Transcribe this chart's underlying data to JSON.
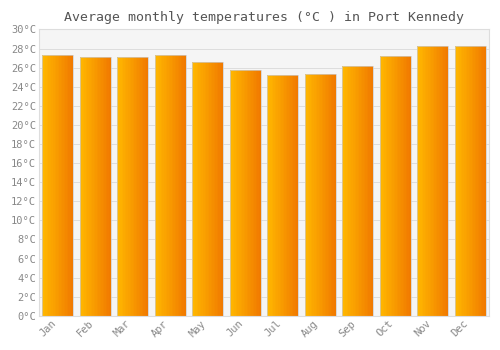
{
  "title": "Average monthly temperatures (°C ) in Port Kennedy",
  "months": [
    "Jan",
    "Feb",
    "Mar",
    "Apr",
    "May",
    "Jun",
    "Jul",
    "Aug",
    "Sep",
    "Oct",
    "Nov",
    "Dec"
  ],
  "values": [
    27.3,
    27.1,
    27.1,
    27.3,
    26.6,
    25.7,
    25.2,
    25.3,
    26.2,
    27.2,
    28.3,
    28.3
  ],
  "ylim": [
    0,
    30
  ],
  "yticks": [
    0,
    2,
    4,
    6,
    8,
    10,
    12,
    14,
    16,
    18,
    20,
    22,
    24,
    26,
    28,
    30
  ],
  "bar_color_left": "#FFB700",
  "bar_color_right": "#F07800",
  "bar_edge_color": "#CCCCCC",
  "background_color": "#FFFFFF",
  "plot_bg_color": "#F5F5F5",
  "grid_color": "#DDDDDD",
  "title_fontsize": 9.5,
  "tick_fontsize": 7.5,
  "tick_color": "#888888",
  "font_family": "monospace",
  "bar_width": 0.82,
  "n_gradient_steps": 20
}
